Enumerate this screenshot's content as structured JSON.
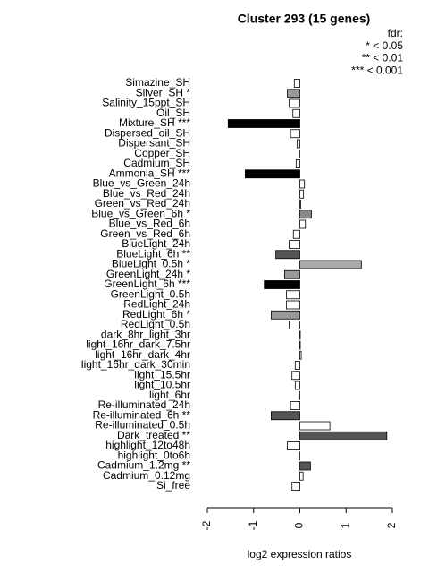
{
  "chart_data": {
    "type": "hbar",
    "title": "Cluster 293 (15 genes)",
    "annotations": [
      "fdr:",
      "* < 0.05",
      "** < 0.01",
      "*** < 0.001"
    ],
    "x_label": "log2 expression ratios",
    "categories": [
      "Simazine_SH",
      "Silver_SH *",
      "Salinity_15ppt_SH",
      "Oil_SH",
      "Mixture_SH ***",
      "Dispersed_oil_SH",
      "Dispersant_SH",
      "Copper_SH",
      "Cadmium_SH",
      "Ammonia_SH ***",
      "Blue_vs_Green_24h",
      "Blue_vs_Red_24h",
      "Green_vs_Red_24h",
      "Blue_vs_Green_6h *",
      "Blue_vs_Red_6h",
      "Green_vs_Red_6h",
      "BlueLight_24h",
      "BlueLight_6h **",
      "BlueLight_0.5h *",
      "GreenLight_24h *",
      "GreenLight_6h ***",
      "GreenLight_0.5h",
      "RedLight_24h",
      "RedLight_6h *",
      "RedLight_0.5h",
      "dark_8hr_light_3hr",
      "light_16hr_dark_7.5hr",
      "light_16hr_dark_4hr",
      "light_16hr_dark_30min",
      "light_15.5hr",
      "light_10.5hr",
      "light_6hr",
      "Re-illuminated_24h",
      "Re-illuminated_6h **",
      "Re-illuminated_0.5h",
      "Dark_treated **",
      "highlight_12to48h",
      "highlight_0to6h",
      "Cadmium_1.2mg **",
      "Cadmium_0.12mg",
      "Si_free"
    ],
    "values": [
      -0.12,
      -0.27,
      -0.23,
      -0.15,
      -1.55,
      -0.2,
      -0.06,
      -0.02,
      -0.08,
      -1.18,
      0.1,
      0.08,
      0.02,
      0.25,
      0.12,
      -0.14,
      -0.23,
      -0.52,
      1.33,
      -0.33,
      -0.77,
      -0.29,
      -0.29,
      -0.62,
      -0.23,
      0.01,
      0.01,
      0.03,
      -0.1,
      -0.17,
      -0.1,
      -0.02,
      -0.2,
      -0.62,
      0.65,
      1.88,
      -0.27,
      -0.02,
      0.23,
      0.07,
      -0.17
    ],
    "colors": [
      "#ffffff",
      "#999999",
      "#ffffff",
      "#ffffff",
      "#000000",
      "#ffffff",
      "#ffffff",
      "#ffffff",
      "#ffffff",
      "#000000",
      "#ffffff",
      "#ffffff",
      "#ffffff",
      "#888888",
      "#ffffff",
      "#ffffff",
      "#ffffff",
      "#555555",
      "#aaaaaa",
      "#999999",
      "#000000",
      "#ffffff",
      "#ffffff",
      "#999999",
      "#ffffff",
      "#ffffff",
      "#ffffff",
      "#ffffff",
      "#ffffff",
      "#ffffff",
      "#ffffff",
      "#ffffff",
      "#ffffff",
      "#555555",
      "#ffffff",
      "#555555",
      "#ffffff",
      "#ffffff",
      "#555555",
      "#ffffff",
      "#ffffff"
    ],
    "xlim": [
      -2,
      2
    ],
    "xticks": [
      -2,
      -1,
      0,
      1,
      2
    ]
  }
}
